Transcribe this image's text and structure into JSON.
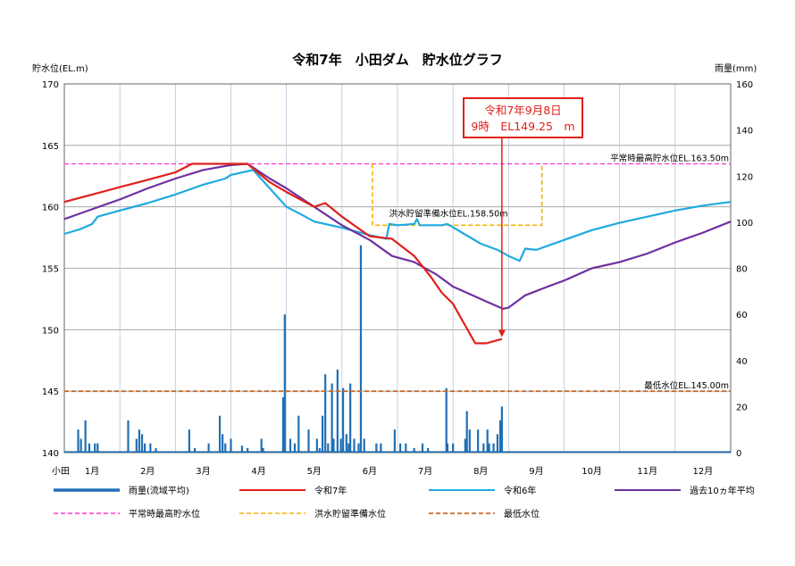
{
  "chart_data": {
    "type": "line",
    "title": "令和7年　小田ダム　貯水位グラフ",
    "y_left_label": "貯水位(EL.m)",
    "y_right_label": "雨量(mm)",
    "y_left_range": [
      140,
      170
    ],
    "y_left_ticks": [
      "140",
      "145",
      "150",
      "155",
      "160",
      "165",
      "170"
    ],
    "y_right_range": [
      0,
      160
    ],
    "y_right_ticks": [
      "0",
      "20",
      "40",
      "60",
      "80",
      "100",
      "120",
      "140",
      "160"
    ],
    "x_range_month": [
      1,
      13
    ],
    "x_corner_label": "小田",
    "months": [
      "1月",
      "2月",
      "3月",
      "4月",
      "5月",
      "6月",
      "7月",
      "8月",
      "9月",
      "10月",
      "11月",
      "12月"
    ],
    "grid": true,
    "legend_position": "bottom",
    "colors": {
      "rain": "#1f6fb5",
      "r7": "#e0201b",
      "r6": "#1eaadf",
      "avg10": "#7030a0",
      "normal_max": "#ff33cc",
      "flood_prep": "#f5b400",
      "min_level": "#c86b2a",
      "grid": "#999999",
      "annotation": "#e0201b"
    },
    "reference_lines": [
      {
        "label": "平常時最高貯水位EL.163.50m",
        "y": 163.5
      },
      {
        "label": "最低水位EL.145.00m",
        "y": 145.0
      }
    ],
    "flood_prep_label": "洪水貯留準備水位EL.158.50m",
    "flood_prep_line": [
      [
        6.55,
        163.5
      ],
      [
        6.55,
        158.5
      ],
      [
        9.6,
        158.5
      ],
      [
        9.6,
        163.5
      ]
    ],
    "annotation": {
      "line1": "令和7年9月8日",
      "line2": "9時　EL149.25　m",
      "target_x": 8.88,
      "target_y": 149.25
    },
    "series": [
      {
        "name": "令和7年",
        "points": [
          [
            1.0,
            160.4
          ],
          [
            1.5,
            161.0
          ],
          [
            2.0,
            161.6
          ],
          [
            2.5,
            162.2
          ],
          [
            3.0,
            162.8
          ],
          [
            3.3,
            163.5
          ],
          [
            3.7,
            163.5
          ],
          [
            4.0,
            163.5
          ],
          [
            4.3,
            163.5
          ],
          [
            4.7,
            162.0
          ],
          [
            5.0,
            161.2
          ],
          [
            5.5,
            160.0
          ],
          [
            5.7,
            160.3
          ],
          [
            6.0,
            159.2
          ],
          [
            6.5,
            157.6
          ],
          [
            6.9,
            157.4
          ],
          [
            7.3,
            156.0
          ],
          [
            7.6,
            154.3
          ],
          [
            7.8,
            153.0
          ],
          [
            8.0,
            152.1
          ],
          [
            8.2,
            150.5
          ],
          [
            8.4,
            148.9
          ],
          [
            8.6,
            148.9
          ],
          [
            8.88,
            149.25
          ]
        ]
      },
      {
        "name": "令和6年",
        "points": [
          [
            1.0,
            157.8
          ],
          [
            1.3,
            158.2
          ],
          [
            1.5,
            158.6
          ],
          [
            1.6,
            159.2
          ],
          [
            2.0,
            159.7
          ],
          [
            2.5,
            160.3
          ],
          [
            3.0,
            161.0
          ],
          [
            3.5,
            161.8
          ],
          [
            3.9,
            162.3
          ],
          [
            4.0,
            162.6
          ],
          [
            4.4,
            163.0
          ],
          [
            4.7,
            161.5
          ],
          [
            5.0,
            160.0
          ],
          [
            5.3,
            159.3
          ],
          [
            5.5,
            158.8
          ],
          [
            6.0,
            158.3
          ],
          [
            6.5,
            157.7
          ],
          [
            6.8,
            157.4
          ],
          [
            6.85,
            158.6
          ],
          [
            7.0,
            158.5
          ],
          [
            7.3,
            158.6
          ],
          [
            7.35,
            159.0
          ],
          [
            7.4,
            158.5
          ],
          [
            7.8,
            158.5
          ],
          [
            7.9,
            158.6
          ],
          [
            8.2,
            157.8
          ],
          [
            8.5,
            157.0
          ],
          [
            8.8,
            156.5
          ],
          [
            9.0,
            156.0
          ],
          [
            9.2,
            155.6
          ],
          [
            9.3,
            156.6
          ],
          [
            9.5,
            156.5
          ],
          [
            10.0,
            157.3
          ],
          [
            10.5,
            158.1
          ],
          [
            11.0,
            158.7
          ],
          [
            11.5,
            159.2
          ],
          [
            12.0,
            159.7
          ],
          [
            12.5,
            160.1
          ],
          [
            13.0,
            160.4
          ]
        ]
      },
      {
        "name": "過去10ヵ年平均",
        "points": [
          [
            1.0,
            159.0
          ],
          [
            1.5,
            159.8
          ],
          [
            2.0,
            160.6
          ],
          [
            2.5,
            161.5
          ],
          [
            3.0,
            162.3
          ],
          [
            3.5,
            163.0
          ],
          [
            4.0,
            163.4
          ],
          [
            4.3,
            163.5
          ],
          [
            4.7,
            162.3
          ],
          [
            5.0,
            161.5
          ],
          [
            5.5,
            160.0
          ],
          [
            6.0,
            158.5
          ],
          [
            6.5,
            157.3
          ],
          [
            6.9,
            156.0
          ],
          [
            7.3,
            155.5
          ],
          [
            7.7,
            154.5
          ],
          [
            8.0,
            153.5
          ],
          [
            8.3,
            152.9
          ],
          [
            8.6,
            152.3
          ],
          [
            8.9,
            151.7
          ],
          [
            9.0,
            151.8
          ],
          [
            9.3,
            152.8
          ],
          [
            9.7,
            153.5
          ],
          [
            10.0,
            154.0
          ],
          [
            10.5,
            155.0
          ],
          [
            11.0,
            155.5
          ],
          [
            11.5,
            156.2
          ],
          [
            12.0,
            157.1
          ],
          [
            12.5,
            157.9
          ],
          [
            13.0,
            158.8
          ]
        ]
      }
    ],
    "rain_series": {
      "name": "雨量(流域平均)",
      "bars": [
        [
          1.25,
          10
        ],
        [
          1.3,
          6
        ],
        [
          1.38,
          14
        ],
        [
          1.45,
          4
        ],
        [
          1.55,
          4
        ],
        [
          1.6,
          4
        ],
        [
          2.15,
          14
        ],
        [
          2.3,
          6
        ],
        [
          2.35,
          10
        ],
        [
          2.4,
          8
        ],
        [
          2.45,
          4
        ],
        [
          2.55,
          4
        ],
        [
          2.65,
          2
        ],
        [
          3.25,
          10
        ],
        [
          3.35,
          2
        ],
        [
          3.6,
          4
        ],
        [
          3.8,
          16
        ],
        [
          3.85,
          8
        ],
        [
          3.9,
          4
        ],
        [
          4.0,
          6
        ],
        [
          4.2,
          3
        ],
        [
          4.3,
          2
        ],
        [
          4.55,
          6
        ],
        [
          4.58,
          2
        ],
        [
          4.94,
          24
        ],
        [
          4.97,
          60
        ],
        [
          5.07,
          6
        ],
        [
          5.15,
          4
        ],
        [
          5.22,
          16
        ],
        [
          5.4,
          10
        ],
        [
          5.55,
          6
        ],
        [
          5.6,
          2
        ],
        [
          5.65,
          16
        ],
        [
          5.7,
          34
        ],
        [
          5.75,
          4
        ],
        [
          5.82,
          30
        ],
        [
          5.85,
          6
        ],
        [
          5.92,
          36
        ],
        [
          5.98,
          6
        ],
        [
          6.02,
          28
        ],
        [
          6.08,
          8
        ],
        [
          6.12,
          4
        ],
        [
          6.15,
          30
        ],
        [
          6.22,
          6
        ],
        [
          6.3,
          4
        ],
        [
          6.34,
          90
        ],
        [
          6.4,
          6
        ],
        [
          6.62,
          4
        ],
        [
          6.7,
          4
        ],
        [
          6.95,
          10
        ],
        [
          7.05,
          4
        ],
        [
          7.15,
          4
        ],
        [
          7.3,
          2
        ],
        [
          7.45,
          4
        ],
        [
          7.55,
          2
        ],
        [
          7.88,
          28
        ],
        [
          7.9,
          4
        ],
        [
          8.0,
          4
        ],
        [
          8.22,
          6
        ],
        [
          8.25,
          18
        ],
        [
          8.3,
          10
        ],
        [
          8.45,
          10
        ],
        [
          8.55,
          4
        ],
        [
          8.62,
          10
        ],
        [
          8.65,
          4
        ],
        [
          8.73,
          4
        ],
        [
          8.8,
          8
        ],
        [
          8.85,
          14
        ],
        [
          8.88,
          20
        ]
      ]
    },
    "legend": [
      {
        "label": "雨量(流域平均)",
        "key": "rain",
        "dash": false,
        "width": 3.5
      },
      {
        "label": "令和7年",
        "key": "r7",
        "dash": false,
        "width": 2
      },
      {
        "label": "令和6年",
        "key": "r6",
        "dash": false,
        "width": 2
      },
      {
        "label": "過去10ヵ年平均",
        "key": "avg10",
        "dash": false,
        "width": 2
      },
      {
        "label": "平常時最高貯水位",
        "key": "normal_max",
        "dash": true,
        "width": 1.5
      },
      {
        "label": "洪水貯留準備水位",
        "key": "flood_prep",
        "dash": true,
        "width": 1.5
      },
      {
        "label": "最低水位",
        "key": "min_level",
        "dash": true,
        "width": 1.8
      }
    ]
  }
}
